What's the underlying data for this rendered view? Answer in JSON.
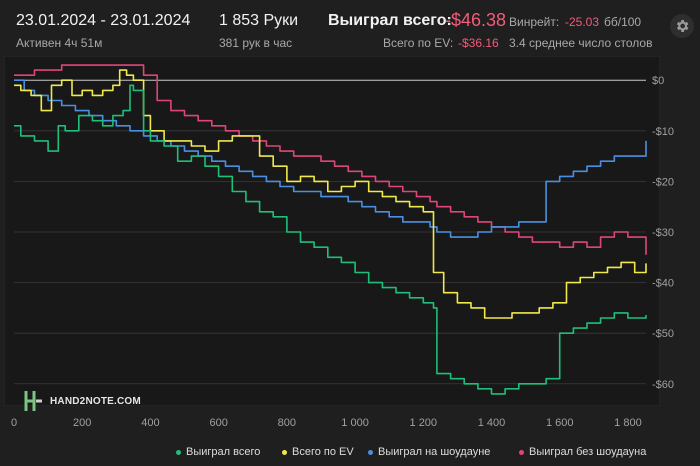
{
  "header": {
    "date_range": "23.01.2024 - 23.01.2024",
    "active": "Активен 4ч 51м",
    "hands": "1 853 Руки",
    "hands_rate": "381 рук в час",
    "won_total_label": "Выиграл всего:",
    "won_total_value": "-$46.38",
    "ev_label": "Всего по EV:",
    "ev_value": "-$36.16",
    "winrate_label": "Винрейт:",
    "winrate_value": "-25.03",
    "winrate_unit": "бб/100",
    "tables": "3.4 среднее число столов"
  },
  "toolbar": {
    "settings_icon": "gear-icon"
  },
  "logo": {
    "text": "HAND2NOTE.COM",
    "icon": "h2n-logo-icon"
  },
  "colors": {
    "won_total": "#1fbf7a",
    "ev": "#f1e94c",
    "showdown": "#4a90e2",
    "no_showdown": "#e0457a",
    "negative": "#f25b7a",
    "zero_line": "#c8c8c8",
    "grid": "#3a3a3a"
  },
  "chart_data": {
    "type": "line",
    "x_label": "",
    "y_label": "",
    "xlim": [
      0,
      1853
    ],
    "ylim": [
      -64,
      4
    ],
    "x_ticks": [
      0,
      200,
      400,
      600,
      800,
      1000,
      1200,
      1400,
      1600,
      1800
    ],
    "x_tick_labels": [
      "0",
      "200",
      "400",
      "600",
      "800",
      "1 000",
      "1 200",
      "1 400",
      "1 600",
      "1 800"
    ],
    "y_ticks": [
      0,
      -10,
      -20,
      -30,
      -40,
      -50,
      -60
    ],
    "y_tick_labels": [
      "$0",
      "-$10",
      "-$20",
      "-$30",
      "-$40",
      "-$50",
      "-$60"
    ],
    "grid": true,
    "legend_position": "bottom",
    "series": [
      {
        "name": "Выиграл всего",
        "color_key": "won_total",
        "x": [
          0,
          20,
          60,
          100,
          130,
          150,
          190,
          230,
          260,
          290,
          320,
          340,
          350,
          380,
          400,
          440,
          480,
          520,
          560,
          600,
          640,
          680,
          720,
          760,
          800,
          840,
          880,
          920,
          960,
          1000,
          1040,
          1080,
          1120,
          1160,
          1200,
          1230,
          1240,
          1280,
          1320,
          1360,
          1400,
          1440,
          1480,
          1520,
          1560,
          1600,
          1640,
          1680,
          1720,
          1760,
          1800,
          1853
        ],
        "y": [
          -9,
          -11,
          -12,
          -14,
          -9,
          -10,
          -7,
          -8,
          -9,
          -7,
          -6,
          -1,
          -2,
          -10,
          -12,
          -13,
          -16,
          -15,
          -17,
          -19,
          -22,
          -24,
          -26,
          -27,
          -30,
          -32,
          -33,
          -35,
          -36,
          -38,
          -40,
          -41,
          -42,
          -43,
          -44,
          -45,
          -58,
          -59,
          -60,
          -61,
          -62,
          -61,
          -60,
          -60,
          -59,
          -50,
          -49,
          -48,
          -47,
          -46,
          -47,
          -46.4
        ]
      },
      {
        "name": "Всего по EV",
        "color_key": "ev",
        "x": [
          0,
          20,
          50,
          80,
          110,
          140,
          170,
          200,
          230,
          260,
          290,
          310,
          330,
          350,
          380,
          400,
          440,
          480,
          520,
          560,
          600,
          640,
          680,
          720,
          760,
          800,
          840,
          880,
          920,
          960,
          1000,
          1040,
          1080,
          1120,
          1160,
          1200,
          1230,
          1260,
          1300,
          1340,
          1380,
          1420,
          1460,
          1500,
          1540,
          1580,
          1620,
          1660,
          1700,
          1740,
          1780,
          1820,
          1853
        ],
        "y": [
          -1,
          -2,
          -3,
          -6,
          -1,
          0,
          -3,
          -2,
          -3,
          -2,
          -1,
          2,
          1,
          0,
          -7,
          -10,
          -12,
          -12,
          -13,
          -14,
          -12,
          -11,
          -11,
          -15,
          -17,
          -20,
          -19,
          -20,
          -22,
          -21,
          -20,
          -22,
          -23,
          -24,
          -25,
          -26,
          -38,
          -42,
          -44,
          -45,
          -47,
          -47,
          -46,
          -46,
          -45,
          -44,
          -40,
          -39,
          -38,
          -37,
          -36,
          -38,
          -36.2
        ]
      },
      {
        "name": "Выиграл на шоудауне",
        "color_key": "showdown",
        "x": [
          0,
          30,
          60,
          100,
          140,
          180,
          220,
          260,
          300,
          340,
          380,
          420,
          460,
          500,
          540,
          580,
          620,
          660,
          700,
          740,
          780,
          820,
          860,
          900,
          940,
          980,
          1020,
          1060,
          1100,
          1140,
          1180,
          1220,
          1240,
          1280,
          1320,
          1360,
          1400,
          1440,
          1480,
          1520,
          1560,
          1600,
          1640,
          1680,
          1720,
          1760,
          1800,
          1853
        ],
        "y": [
          0,
          -2,
          -3,
          -4,
          -5,
          -6,
          -7,
          -8,
          -9,
          -10,
          -11,
          -12,
          -13,
          -14,
          -15,
          -16,
          -17,
          -18,
          -19,
          -20,
          -21,
          -22,
          -22,
          -23,
          -23,
          -24,
          -25,
          -26,
          -27,
          -28,
          -28,
          -29,
          -30,
          -31,
          -31,
          -30,
          -29,
          -29,
          -28,
          -28,
          -20,
          -19,
          -18,
          -17,
          -16,
          -15,
          -15,
          -12
        ]
      },
      {
        "name": "Выиграл без шоудауна",
        "color_key": "no_showdown",
        "x": [
          0,
          30,
          60,
          100,
          140,
          180,
          220,
          260,
          300,
          340,
          380,
          420,
          460,
          500,
          540,
          580,
          620,
          660,
          700,
          740,
          780,
          820,
          860,
          900,
          940,
          980,
          1020,
          1060,
          1100,
          1140,
          1180,
          1220,
          1240,
          1280,
          1320,
          1360,
          1400,
          1440,
          1480,
          1520,
          1560,
          1600,
          1640,
          1680,
          1720,
          1760,
          1800,
          1853
        ],
        "y": [
          1,
          1,
          2,
          2,
          3,
          3,
          3,
          3,
          3,
          3,
          1,
          -4,
          -6,
          -7,
          -8,
          -9,
          -10,
          -11,
          -12,
          -13,
          -14,
          -15,
          -15,
          -16,
          -17,
          -18,
          -19,
          -20,
          -21,
          -22,
          -23,
          -24,
          -25,
          -26,
          -27,
          -28,
          -29,
          -30,
          -31,
          -32,
          -32,
          -33,
          -32,
          -33,
          -31,
          -30,
          -31,
          -34.5
        ]
      }
    ]
  },
  "legend": [
    {
      "label": "Выиграл всего",
      "color_key": "won_total"
    },
    {
      "label": "Всего по EV",
      "color_key": "ev"
    },
    {
      "label": "Выиграл на шоудауне",
      "color_key": "showdown"
    },
    {
      "label": "Выиграл без шоудауна",
      "color_key": "no_showdown"
    }
  ]
}
